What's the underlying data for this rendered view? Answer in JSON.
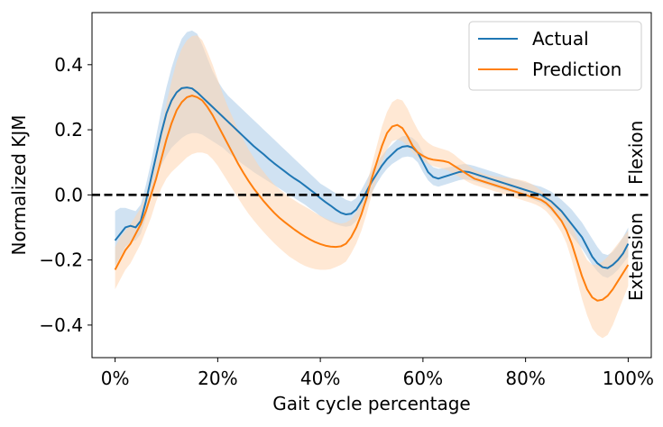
{
  "chart_data": {
    "type": "line",
    "xlabel": "Gait cycle percentage",
    "ylabel": "Normalized KJM",
    "xlim": [
      -4.5,
      104.5
    ],
    "ylim": [
      -0.5,
      0.56
    ],
    "x_ticks": [
      0,
      20,
      40,
      60,
      80,
      100
    ],
    "x_tick_labels": [
      "0%",
      "20%",
      "40%",
      "60%",
      "80%",
      "100%"
    ],
    "y_ticks": [
      -0.4,
      -0.2,
      0.0,
      0.2,
      0.4
    ],
    "y_tick_labels": [
      "−0.4",
      "−0.2",
      "0.0",
      "0.2",
      "0.4"
    ],
    "grid": false,
    "legend": "top-right",
    "reference_line": {
      "y": 0.0,
      "style": "dashed",
      "color": "#000000"
    },
    "annotations": [
      {
        "text": "Flexion",
        "position": "right, above zero",
        "rotation": -90
      },
      {
        "text": "Extension",
        "position": "right, below zero",
        "rotation": -90
      }
    ],
    "x": [
      0,
      1,
      2,
      3,
      4,
      5,
      6,
      7,
      8,
      9,
      10,
      11,
      12,
      13,
      14,
      15,
      16,
      17,
      18,
      19,
      20,
      21,
      22,
      23,
      24,
      25,
      26,
      27,
      28,
      29,
      30,
      31,
      32,
      33,
      34,
      35,
      36,
      37,
      38,
      39,
      40,
      41,
      42,
      43,
      44,
      45,
      46,
      47,
      48,
      49,
      50,
      51,
      52,
      53,
      54,
      55,
      56,
      57,
      58,
      59,
      60,
      61,
      62,
      63,
      64,
      65,
      66,
      67,
      68,
      69,
      70,
      71,
      72,
      73,
      74,
      75,
      76,
      77,
      78,
      79,
      80,
      81,
      82,
      83,
      84,
      85,
      86,
      87,
      88,
      89,
      90,
      91,
      92,
      93,
      94,
      95,
      96,
      97,
      98,
      99,
      100
    ],
    "series": [
      {
        "name": "Actual",
        "color": "#1f77b4",
        "band_color": "#a9cbe8",
        "values": [
          -0.14,
          -0.12,
          -0.1,
          -0.095,
          -0.1,
          -0.08,
          -0.02,
          0.05,
          0.12,
          0.19,
          0.25,
          0.29,
          0.315,
          0.328,
          0.33,
          0.327,
          0.315,
          0.3,
          0.285,
          0.27,
          0.255,
          0.24,
          0.225,
          0.21,
          0.195,
          0.18,
          0.165,
          0.15,
          0.137,
          0.124,
          0.11,
          0.097,
          0.085,
          0.073,
          0.061,
          0.05,
          0.04,
          0.028,
          0.016,
          0.004,
          -0.01,
          -0.022,
          -0.033,
          -0.045,
          -0.055,
          -0.06,
          -0.058,
          -0.045,
          -0.02,
          0.01,
          0.04,
          0.065,
          0.09,
          0.11,
          0.125,
          0.14,
          0.148,
          0.15,
          0.145,
          0.13,
          0.1,
          0.07,
          0.055,
          0.05,
          0.055,
          0.06,
          0.065,
          0.07,
          0.072,
          0.07,
          0.065,
          0.06,
          0.055,
          0.05,
          0.045,
          0.04,
          0.035,
          0.03,
          0.025,
          0.02,
          0.015,
          0.01,
          0.005,
          0.0,
          -0.01,
          -0.02,
          -0.035,
          -0.05,
          -0.07,
          -0.09,
          -0.11,
          -0.13,
          -0.16,
          -0.19,
          -0.21,
          -0.222,
          -0.225,
          -0.215,
          -0.2,
          -0.18,
          -0.15
        ],
        "band_lower": [
          -0.22,
          -0.19,
          -0.16,
          -0.145,
          -0.14,
          -0.12,
          -0.07,
          0.0,
          0.05,
          0.09,
          0.12,
          0.145,
          0.16,
          0.175,
          0.185,
          0.19,
          0.19,
          0.185,
          0.175,
          0.165,
          0.155,
          0.145,
          0.13,
          0.118,
          0.105,
          0.093,
          0.082,
          0.07,
          0.06,
          0.05,
          0.04,
          0.03,
          0.02,
          0.01,
          0.0,
          -0.01,
          -0.02,
          -0.03,
          -0.042,
          -0.053,
          -0.065,
          -0.075,
          -0.083,
          -0.09,
          -0.095,
          -0.098,
          -0.095,
          -0.08,
          -0.055,
          -0.025,
          0.005,
          0.035,
          0.06,
          0.08,
          0.095,
          0.105,
          0.115,
          0.118,
          0.115,
          0.1,
          0.07,
          0.045,
          0.03,
          0.025,
          0.03,
          0.035,
          0.04,
          0.045,
          0.048,
          0.046,
          0.042,
          0.038,
          0.033,
          0.028,
          0.023,
          0.018,
          0.013,
          0.008,
          0.003,
          -0.002,
          -0.007,
          -0.012,
          -0.018,
          -0.025,
          -0.035,
          -0.05,
          -0.065,
          -0.085,
          -0.105,
          -0.125,
          -0.145,
          -0.165,
          -0.19,
          -0.215,
          -0.235,
          -0.25,
          -0.255,
          -0.245,
          -0.23,
          -0.21,
          -0.19
        ],
        "band_upper": [
          -0.05,
          -0.04,
          -0.04,
          -0.045,
          -0.05,
          -0.03,
          0.03,
          0.1,
          0.18,
          0.26,
          0.33,
          0.39,
          0.44,
          0.48,
          0.5,
          0.505,
          0.495,
          0.46,
          0.42,
          0.38,
          0.35,
          0.325,
          0.305,
          0.29,
          0.275,
          0.26,
          0.245,
          0.23,
          0.215,
          0.2,
          0.185,
          0.17,
          0.155,
          0.14,
          0.125,
          0.11,
          0.095,
          0.08,
          0.065,
          0.05,
          0.035,
          0.025,
          0.015,
          0.005,
          -0.005,
          -0.015,
          -0.02,
          -0.01,
          0.015,
          0.045,
          0.075,
          0.1,
          0.12,
          0.14,
          0.155,
          0.17,
          0.18,
          0.182,
          0.175,
          0.16,
          0.13,
          0.1,
          0.085,
          0.08,
          0.082,
          0.085,
          0.088,
          0.092,
          0.095,
          0.093,
          0.089,
          0.084,
          0.079,
          0.074,
          0.069,
          0.064,
          0.058,
          0.053,
          0.048,
          0.043,
          0.038,
          0.034,
          0.029,
          0.025,
          0.018,
          0.01,
          -0.002,
          -0.015,
          -0.03,
          -0.045,
          -0.065,
          -0.085,
          -0.11,
          -0.135,
          -0.16,
          -0.18,
          -0.185,
          -0.175,
          -0.155,
          -0.13,
          -0.1
        ]
      },
      {
        "name": "Prediction",
        "color": "#ff7f0e",
        "band_color": "#ffd6b0",
        "values": [
          -0.23,
          -0.2,
          -0.17,
          -0.15,
          -0.12,
          -0.09,
          -0.05,
          0.0,
          0.05,
          0.11,
          0.17,
          0.22,
          0.26,
          0.285,
          0.3,
          0.305,
          0.3,
          0.29,
          0.27,
          0.245,
          0.215,
          0.185,
          0.155,
          0.125,
          0.095,
          0.068,
          0.043,
          0.02,
          0.0,
          -0.02,
          -0.038,
          -0.055,
          -0.07,
          -0.083,
          -0.095,
          -0.107,
          -0.118,
          -0.128,
          -0.137,
          -0.145,
          -0.151,
          -0.156,
          -0.159,
          -0.16,
          -0.158,
          -0.15,
          -0.13,
          -0.1,
          -0.06,
          -0.01,
          0.05,
          0.1,
          0.15,
          0.19,
          0.21,
          0.215,
          0.205,
          0.18,
          0.15,
          0.13,
          0.12,
          0.112,
          0.108,
          0.106,
          0.104,
          0.1,
          0.09,
          0.08,
          0.07,
          0.06,
          0.05,
          0.045,
          0.04,
          0.035,
          0.03,
          0.025,
          0.02,
          0.015,
          0.01,
          0.005,
          0.0,
          -0.005,
          -0.01,
          -0.015,
          -0.025,
          -0.04,
          -0.06,
          -0.08,
          -0.11,
          -0.15,
          -0.2,
          -0.25,
          -0.29,
          -0.315,
          -0.325,
          -0.322,
          -0.31,
          -0.29,
          -0.265,
          -0.24,
          -0.215
        ],
        "band_lower": [
          -0.29,
          -0.26,
          -0.23,
          -0.21,
          -0.18,
          -0.15,
          -0.11,
          -0.07,
          -0.02,
          0.02,
          0.05,
          0.07,
          0.085,
          0.1,
          0.115,
          0.125,
          0.13,
          0.13,
          0.125,
          0.11,
          0.09,
          0.065,
          0.04,
          0.015,
          -0.01,
          -0.035,
          -0.058,
          -0.078,
          -0.097,
          -0.115,
          -0.132,
          -0.148,
          -0.163,
          -0.177,
          -0.19,
          -0.2,
          -0.21,
          -0.218,
          -0.224,
          -0.228,
          -0.23,
          -0.23,
          -0.228,
          -0.222,
          -0.215,
          -0.205,
          -0.18,
          -0.15,
          -0.11,
          -0.06,
          0.0,
          0.05,
          0.1,
          0.14,
          0.165,
          0.17,
          0.165,
          0.15,
          0.13,
          0.115,
          0.105,
          0.095,
          0.088,
          0.084,
          0.08,
          0.074,
          0.065,
          0.056,
          0.047,
          0.038,
          0.031,
          0.026,
          0.021,
          0.016,
          0.011,
          0.006,
          0.001,
          -0.004,
          -0.009,
          -0.014,
          -0.019,
          -0.024,
          -0.03,
          -0.038,
          -0.05,
          -0.068,
          -0.09,
          -0.115,
          -0.15,
          -0.2,
          -0.26,
          -0.32,
          -0.37,
          -0.41,
          -0.43,
          -0.44,
          -0.43,
          -0.4,
          -0.36,
          -0.32,
          -0.28
        ],
        "band_upper": [
          -0.16,
          -0.13,
          -0.11,
          -0.09,
          -0.065,
          -0.04,
          0.0,
          0.06,
          0.12,
          0.2,
          0.28,
          0.35,
          0.41,
          0.45,
          0.475,
          0.488,
          0.49,
          0.475,
          0.44,
          0.4,
          0.355,
          0.31,
          0.27,
          0.235,
          0.2,
          0.17,
          0.14,
          0.115,
          0.09,
          0.07,
          0.05,
          0.032,
          0.018,
          0.005,
          -0.007,
          -0.017,
          -0.027,
          -0.036,
          -0.045,
          -0.055,
          -0.064,
          -0.072,
          -0.079,
          -0.085,
          -0.088,
          -0.085,
          -0.075,
          -0.055,
          -0.02,
          0.03,
          0.09,
          0.15,
          0.21,
          0.255,
          0.285,
          0.295,
          0.29,
          0.265,
          0.23,
          0.2,
          0.175,
          0.16,
          0.15,
          0.145,
          0.14,
          0.135,
          0.125,
          0.112,
          0.1,
          0.088,
          0.078,
          0.07,
          0.064,
          0.06,
          0.057,
          0.055,
          0.053,
          0.051,
          0.049,
          0.046,
          0.042,
          0.035,
          0.025,
          0.013,
          0.0,
          -0.015,
          -0.03,
          -0.045,
          -0.065,
          -0.095,
          -0.13,
          -0.17,
          -0.2,
          -0.215,
          -0.215,
          -0.205,
          -0.19,
          -0.17,
          -0.15,
          -0.13,
          -0.11
        ]
      }
    ]
  }
}
